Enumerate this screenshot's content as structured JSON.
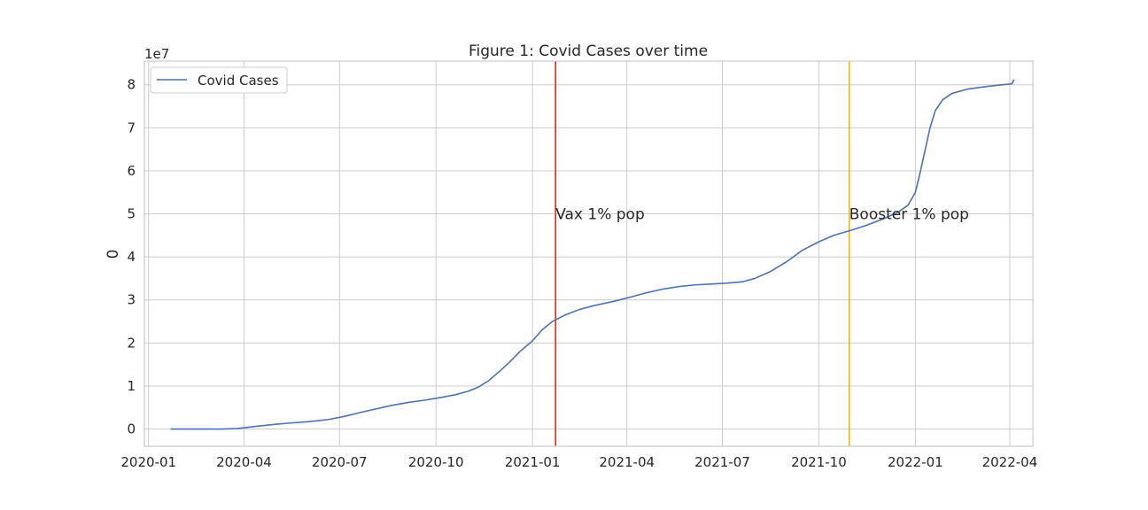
{
  "chart_data": {
    "type": "line",
    "title": "Figure 1: Covid Cases over time",
    "xlabel": "",
    "ylabel": "0",
    "y_offset_text": "1e7",
    "y_multiplier": 10000000,
    "xlim": [
      "2019-12-28",
      "2022-04-23"
    ],
    "ylim": [
      -0.4,
      8.55
    ],
    "x_ticks": [
      "2020-01",
      "2020-04",
      "2020-07",
      "2020-10",
      "2021-01",
      "2021-04",
      "2021-07",
      "2021-10",
      "2022-01",
      "2022-04"
    ],
    "y_ticks": [
      0,
      1,
      2,
      3,
      4,
      5,
      6,
      7,
      8
    ],
    "grid": true,
    "legend_position": "top-left",
    "colors": {
      "line": "#4c72b0",
      "vax": "#e8232a",
      "booster": "#f2b600",
      "grid": "#cccccc",
      "spine": "#cccccc"
    },
    "series": [
      {
        "name": "Covid Cases",
        "points": [
          [
            "2020-01-22",
            0.0
          ],
          [
            "2020-02-15",
            0.0
          ],
          [
            "2020-03-10",
            0.0
          ],
          [
            "2020-03-25",
            0.01
          ],
          [
            "2020-04-15",
            0.07
          ],
          [
            "2020-05-01",
            0.11
          ],
          [
            "2020-05-15",
            0.14
          ],
          [
            "2020-06-01",
            0.17
          ],
          [
            "2020-06-20",
            0.22
          ],
          [
            "2020-07-05",
            0.29
          ],
          [
            "2020-07-20",
            0.38
          ],
          [
            "2020-08-05",
            0.47
          ],
          [
            "2020-08-20",
            0.55
          ],
          [
            "2020-09-05",
            0.62
          ],
          [
            "2020-09-20",
            0.67
          ],
          [
            "2020-10-05",
            0.73
          ],
          [
            "2020-10-20",
            0.8
          ],
          [
            "2020-11-01",
            0.88
          ],
          [
            "2020-11-10",
            0.97
          ],
          [
            "2020-11-20",
            1.12
          ],
          [
            "2020-12-01",
            1.35
          ],
          [
            "2020-12-10",
            1.55
          ],
          [
            "2020-12-20",
            1.8
          ],
          [
            "2021-01-01",
            2.05
          ],
          [
            "2021-01-10",
            2.3
          ],
          [
            "2021-01-20",
            2.5
          ],
          [
            "2021-02-01",
            2.65
          ],
          [
            "2021-02-15",
            2.78
          ],
          [
            "2021-03-01",
            2.87
          ],
          [
            "2021-03-20",
            2.97
          ],
          [
            "2021-04-05",
            3.07
          ],
          [
            "2021-04-20",
            3.17
          ],
          [
            "2021-05-05",
            3.25
          ],
          [
            "2021-05-20",
            3.31
          ],
          [
            "2021-06-05",
            3.35
          ],
          [
            "2021-06-20",
            3.37
          ],
          [
            "2021-07-05",
            3.39
          ],
          [
            "2021-07-20",
            3.42
          ],
          [
            "2021-08-01",
            3.5
          ],
          [
            "2021-08-15",
            3.65
          ],
          [
            "2021-09-01",
            3.9
          ],
          [
            "2021-09-15",
            4.15
          ],
          [
            "2021-10-01",
            4.35
          ],
          [
            "2021-10-15",
            4.5
          ],
          [
            "2021-11-01",
            4.62
          ],
          [
            "2021-11-15",
            4.73
          ],
          [
            "2021-12-01",
            4.88
          ],
          [
            "2021-12-15",
            5.03
          ],
          [
            "2021-12-25",
            5.2
          ],
          [
            "2022-01-01",
            5.5
          ],
          [
            "2022-01-05",
            5.9
          ],
          [
            "2022-01-10",
            6.45
          ],
          [
            "2022-01-15",
            7.0
          ],
          [
            "2022-01-20",
            7.4
          ],
          [
            "2022-01-27",
            7.65
          ],
          [
            "2022-02-05",
            7.8
          ],
          [
            "2022-02-20",
            7.9
          ],
          [
            "2022-03-10",
            7.96
          ],
          [
            "2022-03-25",
            8.0
          ],
          [
            "2022-04-03",
            8.02
          ],
          [
            "2022-04-05",
            8.12
          ]
        ]
      }
    ],
    "annotations": [
      {
        "label": "Vax 1% pop",
        "x": "2021-01-23",
        "y": 5.0,
        "color": "#e8232a"
      },
      {
        "label": "Booster 1% pop",
        "x": "2021-10-30",
        "y": 5.0,
        "color": "#f2b600"
      }
    ]
  }
}
